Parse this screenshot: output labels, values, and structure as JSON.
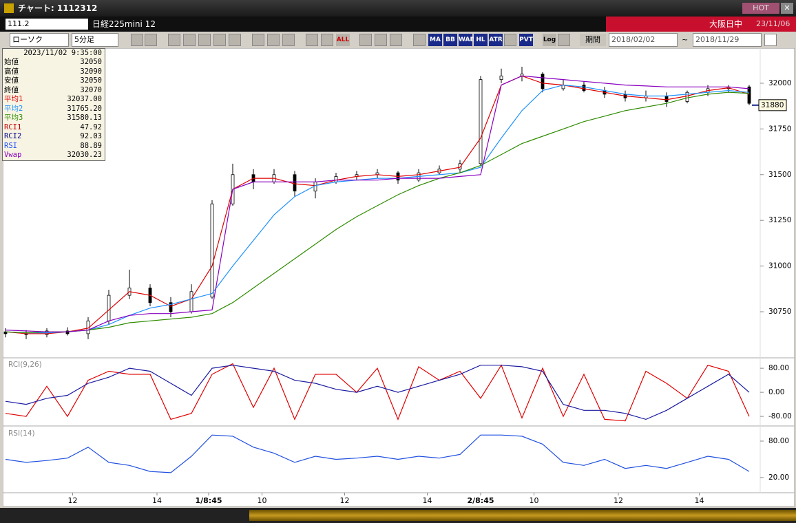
{
  "window": {
    "title": "チャート: 1112312",
    "hot": "HOT"
  },
  "symbol_bar": {
    "code": "111.2",
    "name": "日経225mini 12",
    "session": "大阪日中",
    "date": "23/11/06"
  },
  "toolbar": {
    "chart_kind": "ローソク",
    "interval": "5分足",
    "buttons": [
      "ALL",
      "MA",
      "BB",
      "WAE",
      "HL",
      "ATR",
      "PVT",
      "Log"
    ],
    "period": "期間",
    "from": "2018/02/02",
    "sep": "~",
    "to": "2018/11/29"
  },
  "info_box": {
    "time": "2023/11/02 9:35:00",
    "rows": [
      {
        "label": "始値",
        "value": "32050",
        "color": "#000000"
      },
      {
        "label": "高値",
        "value": "32090",
        "color": "#000000"
      },
      {
        "label": "安値",
        "value": "32050",
        "color": "#000000"
      },
      {
        "label": "終値",
        "value": "32070",
        "color": "#000000"
      },
      {
        "label": "平均1",
        "value": "32037.00",
        "color": "#e00000"
      },
      {
        "label": "平均2",
        "value": "31765.20",
        "color": "#1e90ff"
      },
      {
        "label": "平均3",
        "value": "31580.13",
        "color": "#2e8b00"
      },
      {
        "label": "RCI1",
        "value": "47.92",
        "color": "#c00000"
      },
      {
        "label": "RCI2",
        "value": "92.03",
        "color": "#00008b"
      },
      {
        "label": "RSI",
        "value": "88.89",
        "color": "#1e50ff"
      },
      {
        "label": "Vwap",
        "value": "32030.23",
        "color": "#8a00c0"
      }
    ]
  },
  "chart_data": [
    {
      "type": "candlestick",
      "x": [
        0,
        6,
        12,
        18,
        24,
        30,
        36,
        42,
        48,
        54,
        60,
        66,
        72,
        78,
        84,
        90,
        96,
        102,
        108,
        114,
        120,
        126,
        132,
        138,
        144,
        150,
        156,
        162,
        168,
        174,
        180,
        186,
        192,
        198,
        204,
        210,
        216
      ],
      "open": [
        30640,
        30630,
        30625,
        30645,
        30630,
        30700,
        30840,
        30880,
        30800,
        30750,
        30830,
        31340,
        31500,
        31460,
        31500,
        31410,
        31460,
        31490,
        31500,
        31510,
        31470,
        31510,
        31530,
        31560,
        32020,
        32040,
        32050,
        31970,
        31990,
        31960,
        31940,
        31920,
        31930,
        31900,
        31950,
        31970,
        31980
      ],
      "high": [
        30660,
        30650,
        30660,
        30665,
        30720,
        30870,
        30980,
        30900,
        30830,
        30900,
        31360,
        31560,
        31530,
        31530,
        31520,
        31480,
        31510,
        31520,
        31530,
        31520,
        31530,
        31550,
        31580,
        32040,
        32080,
        32090,
        32060,
        32020,
        32010,
        31980,
        31960,
        31960,
        31950,
        31960,
        31990,
        31990,
        31990
      ],
      "low": [
        30610,
        30600,
        30610,
        30620,
        30600,
        30680,
        30820,
        30780,
        30720,
        30740,
        30820,
        31330,
        31420,
        31450,
        31380,
        31370,
        31450,
        31470,
        31480,
        31450,
        31460,
        31500,
        31510,
        31550,
        32000,
        32010,
        31950,
        31960,
        31950,
        31920,
        31900,
        31900,
        31870,
        31890,
        31930,
        31950,
        31880
      ],
      "close": [
        30630,
        30625,
        30645,
        30630,
        30700,
        30840,
        30880,
        30800,
        30750,
        30860,
        31340,
        31500,
        31460,
        31500,
        31410,
        31460,
        31490,
        31500,
        31510,
        31470,
        31510,
        31530,
        31560,
        32020,
        32040,
        32050,
        31970,
        31990,
        31960,
        31940,
        31920,
        31930,
        31900,
        31950,
        31970,
        31980,
        31890
      ],
      "up_color": "#ffffff",
      "down_color": "#000000",
      "series": [
        {
          "color": "#e00000",
          "values": [
            30640,
            30630,
            30630,
            30640,
            30660,
            30760,
            30860,
            30840,
            30780,
            30820,
            31000,
            31420,
            31480,
            31480,
            31450,
            31440,
            31470,
            31490,
            31500,
            31490,
            31500,
            31520,
            31540,
            31700,
            31990,
            32040,
            32000,
            31990,
            31970,
            31950,
            31930,
            31920,
            31910,
            31930,
            31960,
            31975,
            31940
          ]
        },
        {
          "color": "#1e90ff",
          "values": [
            30640,
            30635,
            30635,
            30640,
            30650,
            30680,
            30730,
            30770,
            30790,
            30820,
            30850,
            31000,
            31140,
            31280,
            31380,
            31440,
            31460,
            31470,
            31480,
            31480,
            31490,
            31500,
            31510,
            31540,
            31700,
            31850,
            31960,
            31990,
            31980,
            31960,
            31940,
            31930,
            31930,
            31940,
            31950,
            31960,
            31950
          ]
        },
        {
          "color": "#2e8b00",
          "values": [
            30640,
            30635,
            30640,
            30640,
            30650,
            30665,
            30690,
            30700,
            30710,
            30720,
            30740,
            30800,
            30880,
            30960,
            31040,
            31120,
            31200,
            31270,
            31330,
            31390,
            31440,
            31480,
            31510,
            31550,
            31610,
            31670,
            31710,
            31750,
            31790,
            31820,
            31850,
            31870,
            31890,
            31920,
            31940,
            31950,
            31945
          ]
        },
        {
          "color": "#8a00c0",
          "values": [
            30650,
            30645,
            30640,
            30640,
            30650,
            30700,
            30730,
            30740,
            30740,
            30750,
            30760,
            31420,
            31460,
            31460,
            31460,
            31460,
            31470,
            31470,
            31470,
            31480,
            31480,
            31480,
            31490,
            31500,
            31990,
            32040,
            32030,
            32020,
            32010,
            32000,
            31990,
            31985,
            31980,
            31980,
            31980,
            31980,
            31970
          ]
        }
      ],
      "xlim": [
        0,
        218
      ],
      "ylim": [
        30528,
        32124
      ],
      "yticks": [
        30750,
        31000,
        31250,
        31500,
        31750,
        32000
      ],
      "xticks": [
        {
          "value": 19.5,
          "label": "12"
        },
        {
          "value": 44,
          "label": "14"
        },
        {
          "value": 59,
          "label": "1/8:45"
        },
        {
          "value": 74.5,
          "label": "10"
        },
        {
          "value": 98.5,
          "label": "12"
        },
        {
          "value": 122.5,
          "label": "14"
        },
        {
          "value": 138,
          "label": "2/8:45"
        },
        {
          "value": 153.5,
          "label": "10"
        },
        {
          "value": 178,
          "label": "12"
        },
        {
          "value": 201.5,
          "label": "14"
        }
      ],
      "last_price": 31880
    },
    {
      "type": "line",
      "title": "RCI(9,26)",
      "x": [
        0,
        6,
        12,
        18,
        24,
        30,
        36,
        42,
        48,
        54,
        60,
        66,
        72,
        78,
        84,
        90,
        96,
        102,
        108,
        114,
        120,
        126,
        132,
        138,
        144,
        150,
        156,
        162,
        168,
        174,
        180,
        186,
        192,
        198,
        204,
        210,
        216
      ],
      "series": [
        {
          "color": "#e00000",
          "values": [
            -70,
            -80,
            20,
            -80,
            40,
            70,
            60,
            60,
            -90,
            -70,
            60,
            95,
            -50,
            80,
            -90,
            60,
            60,
            0,
            80,
            -90,
            85,
            40,
            70,
            -20,
            90,
            -85,
            80,
            -80,
            60,
            -90,
            -95,
            70,
            30,
            -20,
            90,
            70,
            -80
          ]
        },
        {
          "color": "#1a1aa0",
          "values": [
            -30,
            -40,
            -20,
            -10,
            30,
            50,
            80,
            70,
            30,
            -10,
            80,
            90,
            80,
            70,
            40,
            30,
            10,
            0,
            20,
            0,
            20,
            40,
            60,
            90,
            90,
            85,
            70,
            -40,
            -60,
            -60,
            -70,
            -90,
            -60,
            -20,
            20,
            60,
            0
          ]
        }
      ],
      "xlim": [
        0,
        218
      ],
      "ylim": [
        -105,
        110
      ],
      "yticks": [
        {
          "value": 80,
          "label": "80.00"
        },
        {
          "value": 0,
          "label": "0.00"
        },
        {
          "value": -80,
          "label": "-80.00"
        }
      ]
    },
    {
      "type": "line",
      "title": "RSI(14)",
      "x": [
        0,
        6,
        12,
        18,
        24,
        30,
        36,
        42,
        48,
        54,
        60,
        66,
        72,
        78,
        84,
        90,
        96,
        102,
        108,
        114,
        120,
        126,
        132,
        138,
        144,
        150,
        156,
        162,
        168,
        174,
        180,
        186,
        192,
        198,
        204,
        210,
        216
      ],
      "series": [
        {
          "color": "#2050e0",
          "values": [
            50,
            45,
            48,
            52,
            70,
            45,
            40,
            30,
            28,
            55,
            90,
            88,
            70,
            60,
            45,
            55,
            50,
            52,
            55,
            50,
            55,
            52,
            58,
            90,
            90,
            88,
            75,
            45,
            40,
            50,
            35,
            40,
            35,
            45,
            55,
            50,
            30
          ]
        }
      ],
      "xlim": [
        0,
        218
      ],
      "ylim": [
        -5,
        101.5
      ],
      "yticks": [
        {
          "value": 80,
          "label": "80.00"
        },
        {
          "value": 20,
          "label": "20.00"
        }
      ]
    }
  ]
}
